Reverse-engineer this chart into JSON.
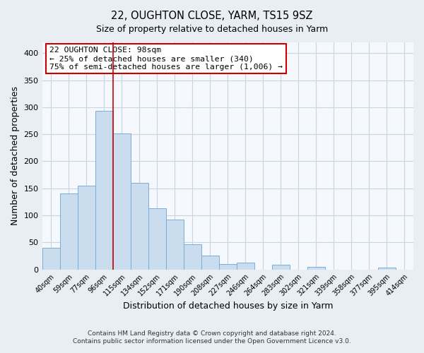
{
  "title": "22, OUGHTON CLOSE, YARM, TS15 9SZ",
  "subtitle": "Size of property relative to detached houses in Yarm",
  "xlabel": "Distribution of detached houses by size in Yarm",
  "ylabel": "Number of detached properties",
  "bar_color": "#c9ddef",
  "bar_edge_color": "#7aaed6",
  "categories": [
    "40sqm",
    "59sqm",
    "77sqm",
    "96sqm",
    "115sqm",
    "134sqm",
    "152sqm",
    "171sqm",
    "190sqm",
    "208sqm",
    "227sqm",
    "246sqm",
    "264sqm",
    "283sqm",
    "302sqm",
    "321sqm",
    "339sqm",
    "358sqm",
    "377sqm",
    "395sqm",
    "414sqm"
  ],
  "values": [
    40,
    140,
    155,
    293,
    251,
    160,
    113,
    92,
    46,
    25,
    10,
    13,
    0,
    8,
    0,
    5,
    0,
    0,
    0,
    3,
    0
  ],
  "ylim": [
    0,
    420
  ],
  "yticks": [
    0,
    50,
    100,
    150,
    200,
    250,
    300,
    350,
    400
  ],
  "annotation_text": "22 OUGHTON CLOSE: 98sqm\n← 25% of detached houses are smaller (340)\n75% of semi-detached houses are larger (1,006) →",
  "annotation_box_color": "white",
  "annotation_box_edge_color": "#cc0000",
  "property_bin_index": 3,
  "property_line_color": "#cc0000",
  "footer_line1": "Contains HM Land Registry data © Crown copyright and database right 2024.",
  "footer_line2": "Contains public sector information licensed under the Open Government Licence v3.0.",
  "background_color": "#e8eef4",
  "plot_background_color": "#f5f8fc",
  "grid_color": "#c8d4e0"
}
